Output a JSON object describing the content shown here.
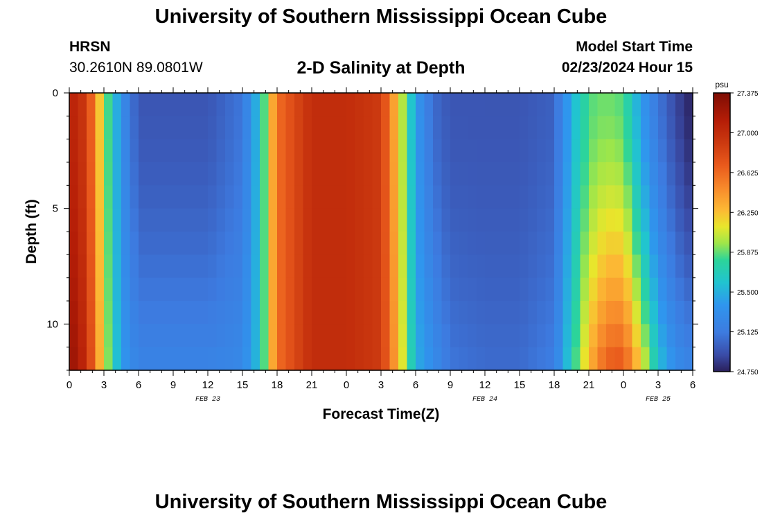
{
  "header": {
    "title": "University of Southern Mississippi Ocean Cube",
    "station": "HRSN",
    "coords": "30.2610N  89.0801W",
    "subtitle": "2-D Salinity at Depth",
    "model_start_label": "Model Start Time",
    "model_start_value": "02/23/2024 Hour 15"
  },
  "footer": {
    "title": "University of Southern Mississippi Ocean Cube"
  },
  "chart_data": {
    "type": "heatmap",
    "title": "2-D Salinity at Depth",
    "xlabel": "Forecast Time(Z)",
    "ylabel": "Depth (ft)",
    "x_range_hours": [
      0,
      54
    ],
    "y_range_ft": [
      0,
      12
    ],
    "y_inverted": true,
    "x_ticks": [
      "0",
      "3",
      "6",
      "9",
      "12",
      "15",
      "18",
      "21",
      "0",
      "3",
      "6",
      "9",
      "12",
      "15",
      "18",
      "21",
      "0",
      "3",
      "6"
    ],
    "y_ticks": [
      "0",
      "5",
      "10"
    ],
    "date_labels": [
      {
        "label": "FEB 23",
        "hour": 12
      },
      {
        "label": "FEB 24",
        "hour": 36
      },
      {
        "label": "FEB 25",
        "hour": 51
      }
    ],
    "colorbar": {
      "unit": "psu",
      "min": 24.75,
      "max": 27.375,
      "tick_labels": [
        "27.375",
        "27.000",
        "26.625",
        "26.250",
        "25.875",
        "25.500",
        "25.125",
        "24.750"
      ],
      "tick_values": [
        27.375,
        27.0,
        26.625,
        26.25,
        25.875,
        25.5,
        25.125,
        24.75
      ]
    },
    "depth_levels_ft": [
      0.5,
      1.5,
      2.5,
      3.5,
      4.5,
      5.5,
      6.5,
      7.5,
      8.5,
      9.5,
      10.5,
      11.5
    ],
    "profile_hours": [
      0,
      1.5,
      3,
      4.5,
      6,
      9,
      12,
      15,
      16.5,
      18,
      21,
      24,
      27,
      28.5,
      30,
      31.5,
      33,
      36,
      39,
      42,
      43.5,
      45,
      46.5,
      48,
      49.5,
      51,
      52.5,
      54
    ],
    "salinity_surface": [
      27.1,
      26.9,
      26.0,
      25.3,
      24.95,
      24.95,
      24.95,
      25.1,
      25.6,
      26.6,
      27.0,
      27.0,
      26.9,
      26.2,
      25.4,
      25.05,
      24.95,
      24.95,
      24.95,
      25.0,
      25.5,
      25.85,
      25.9,
      25.85,
      25.4,
      25.1,
      24.9,
      24.75
    ],
    "salinity_bottom": [
      27.3,
      27.0,
      26.1,
      25.4,
      25.2,
      25.2,
      25.2,
      25.25,
      25.6,
      26.6,
      27.0,
      27.0,
      26.9,
      26.3,
      25.5,
      25.3,
      25.1,
      25.05,
      25.05,
      25.15,
      25.7,
      26.3,
      26.7,
      26.75,
      26.2,
      25.6,
      25.3,
      25.2
    ]
  }
}
